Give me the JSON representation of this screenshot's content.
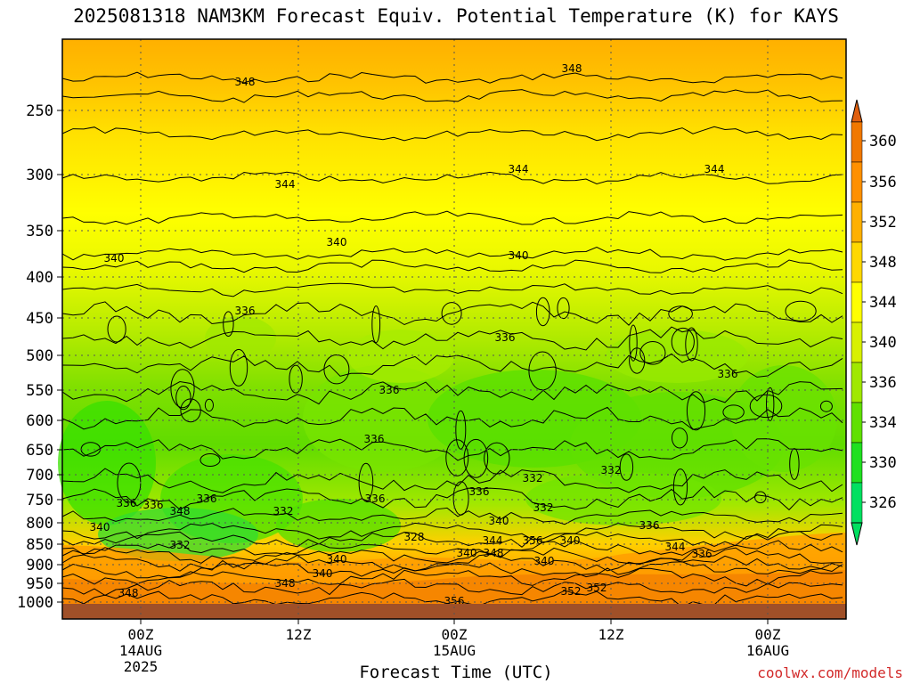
{
  "chart_data": {
    "type": "heatmap",
    "title": "2025081318 NAM3KM Forecast Equiv. Potential Temperature (K) for KAYS",
    "xlabel": "Forecast Time (UTC)",
    "ylabel": "",
    "credit": "coolwx.com/models",
    "y_ticks": [
      "250",
      "300",
      "350",
      "400",
      "450",
      "500",
      "550",
      "600",
      "650",
      "700",
      "750",
      "800",
      "850",
      "900",
      "950",
      "1000"
    ],
    "x_ticks": [
      {
        "lines": [
          "00Z",
          "14AUG",
          "2025"
        ]
      },
      {
        "lines": [
          "12Z"
        ]
      },
      {
        "lines": [
          "00Z",
          "15AUG"
        ]
      },
      {
        "lines": [
          "12Z"
        ]
      },
      {
        "lines": [
          "00Z",
          "16AUG"
        ]
      }
    ],
    "colorbar": {
      "levels": [
        "326",
        "330",
        "334",
        "336",
        "340",
        "344",
        "348",
        "352",
        "356",
        "360"
      ],
      "colors": [
        "#00e060",
        "#20e020",
        "#60e000",
        "#a0e800",
        "#d8f000",
        "#ffff00",
        "#ffd800",
        "#ffb000",
        "#ff9000",
        "#f07800",
        "#e06010"
      ]
    },
    "contour_labels": [
      "348",
      "348",
      "344",
      "344",
      "344",
      "340",
      "340",
      "340",
      "336",
      "336",
      "336",
      "336",
      "336",
      "332",
      "332",
      "332",
      "336",
      "336",
      "336",
      "336",
      "336",
      "348",
      "336",
      "332",
      "328",
      "340",
      "340",
      "340",
      "344",
      "340",
      "348",
      "340",
      "352",
      "356",
      "348",
      "340",
      "336",
      "348",
      "352",
      "356",
      "344",
      "340",
      "332"
    ],
    "grid": true,
    "colors": {
      "boundary_layer": "#a05028",
      "grid": "#555555"
    }
  }
}
